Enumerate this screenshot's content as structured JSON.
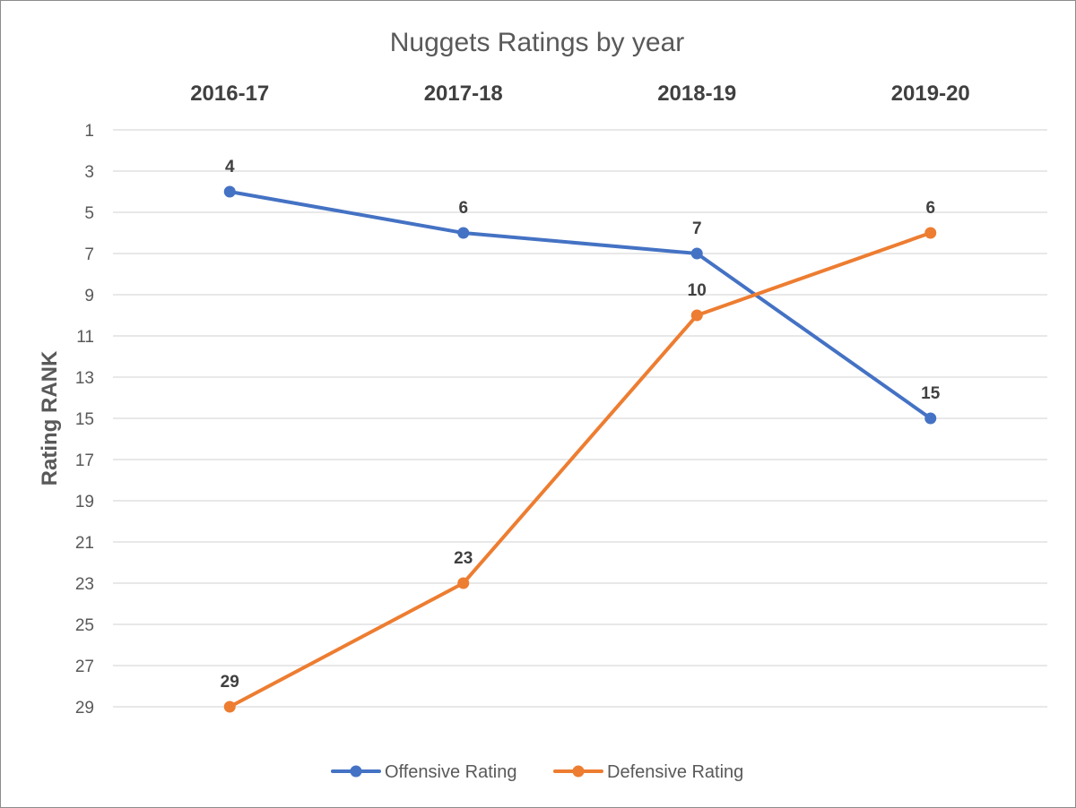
{
  "chart_data": {
    "type": "line",
    "title": "Nuggets Ratings by year",
    "ylabel": "Rating RANK",
    "xlabel": "",
    "categories": [
      "2016-17",
      "2017-18",
      "2018-19",
      "2019-20"
    ],
    "y_axis": {
      "min": 1,
      "max": 29,
      "major_unit": 2,
      "reversed": true,
      "tick_labels": [
        "1",
        "3",
        "5",
        "7",
        "9",
        "11",
        "13",
        "15",
        "17",
        "19",
        "21",
        "23",
        "25",
        "27",
        "29"
      ]
    },
    "category_axis_position": "top",
    "grid": true,
    "legend_position": "bottom",
    "series": [
      {
        "name": "Offensive Rating",
        "color": "#4472C4",
        "values": [
          4,
          6,
          7,
          15
        ],
        "data_labels": [
          "4",
          "6",
          "7",
          "15"
        ]
      },
      {
        "name": "Defensive Rating",
        "color": "#ED7D31",
        "values": [
          29,
          23,
          10,
          6
        ],
        "data_labels": [
          "29",
          "23",
          "10",
          "6"
        ]
      }
    ]
  }
}
